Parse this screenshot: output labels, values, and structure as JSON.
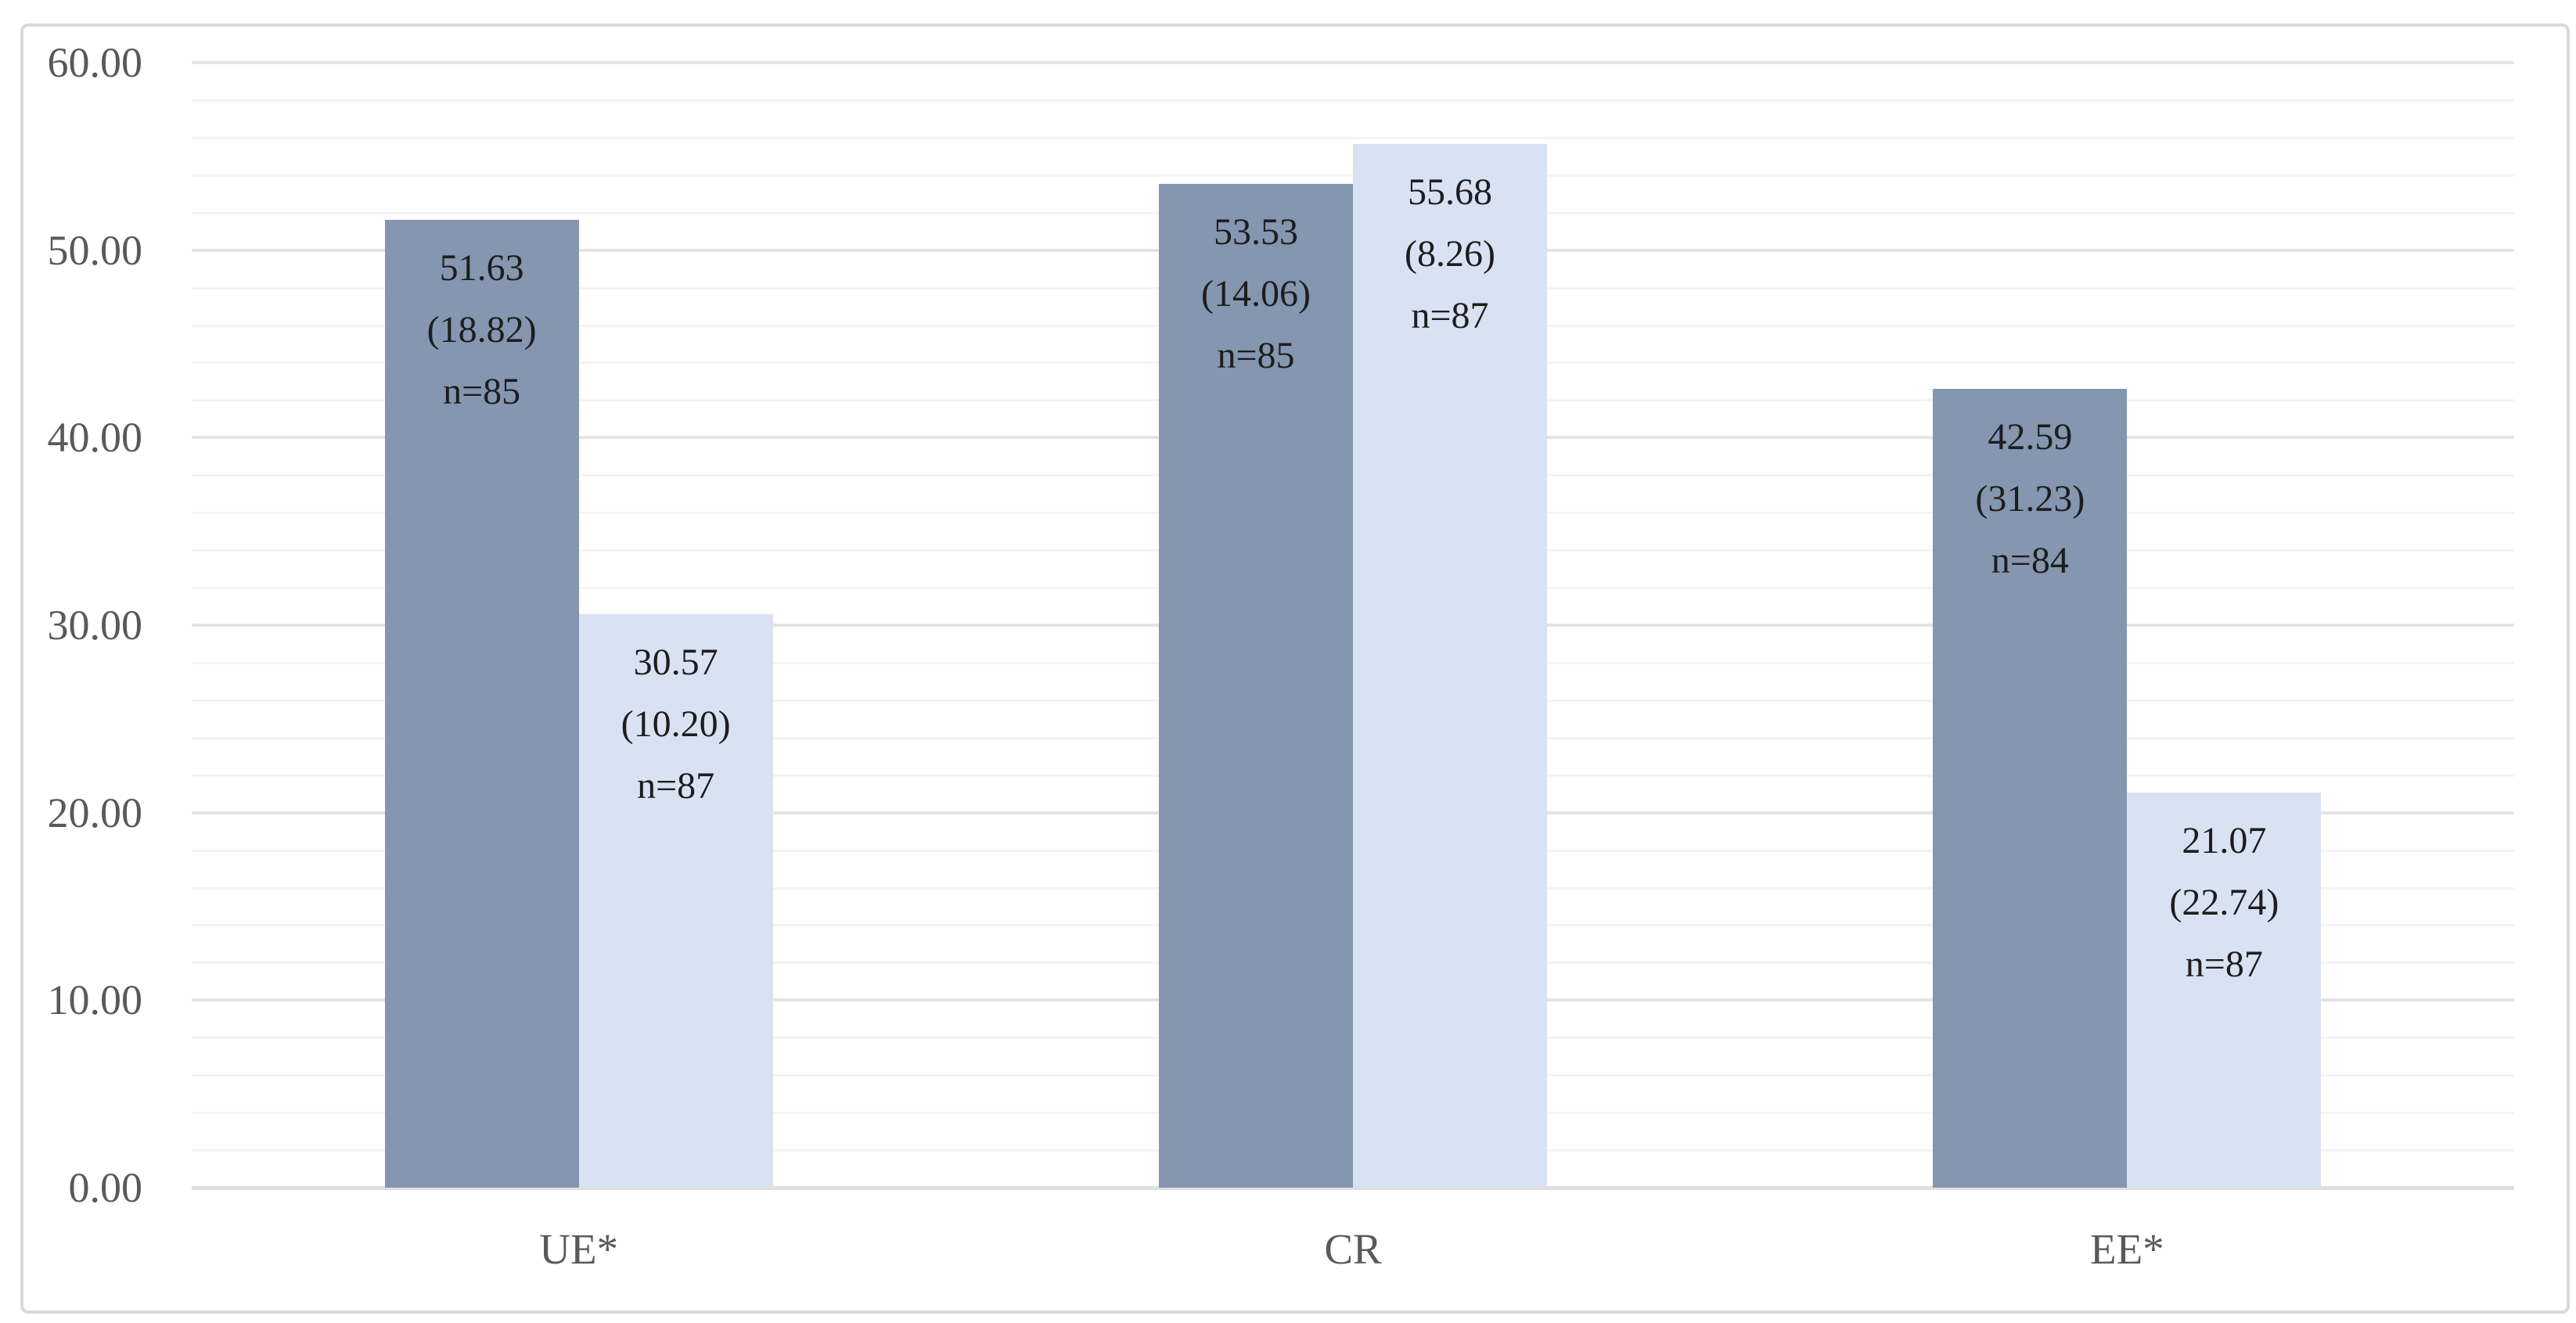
{
  "figure": {
    "background": "#ffffff",
    "border_color": "#d9d9d9"
  },
  "chart_data": {
    "type": "bar",
    "title": "",
    "categories": [
      "UE*",
      "CR",
      "EE*"
    ],
    "series": [
      {
        "id": "dark-blue-series",
        "color": "#8496B0",
        "values": [
          51.63,
          53.53,
          42.59
        ],
        "std_dev": [
          18.82,
          14.06,
          31.23
        ],
        "n": [
          85,
          85,
          84
        ],
        "bar_labels": [
          [
            "51.63",
            "(18.82)",
            "n=85"
          ],
          [
            "53.53",
            "(14.06)",
            "n=85"
          ],
          [
            "42.59",
            "(31.23)",
            "n=84"
          ]
        ]
      },
      {
        "id": "light-blue-series",
        "color": "#D9E2F3",
        "values": [
          30.57,
          55.68,
          21.07
        ],
        "std_dev": [
          10.2,
          8.26,
          22.74
        ],
        "n": [
          87,
          87,
          87
        ],
        "bar_labels": [
          [
            "30.57",
            "(10.20)",
            "n=87"
          ],
          [
            "55.68",
            "(8.26)",
            "n=87"
          ],
          [
            "21.07",
            "(22.74)",
            "n=87"
          ]
        ]
      }
    ],
    "xlabel": "",
    "ylabel": "",
    "ylim": [
      0,
      60
    ],
    "ytick_interval": 10,
    "minor_gridline_interval": 2,
    "ytick_labels": [
      "0.00",
      "10.00",
      "20.00",
      "30.00",
      "40.00",
      "50.00",
      "60.00"
    ],
    "grid": true,
    "legend": false,
    "axis_text_color": "#595959",
    "label_text_color": "#1d1d1d"
  }
}
